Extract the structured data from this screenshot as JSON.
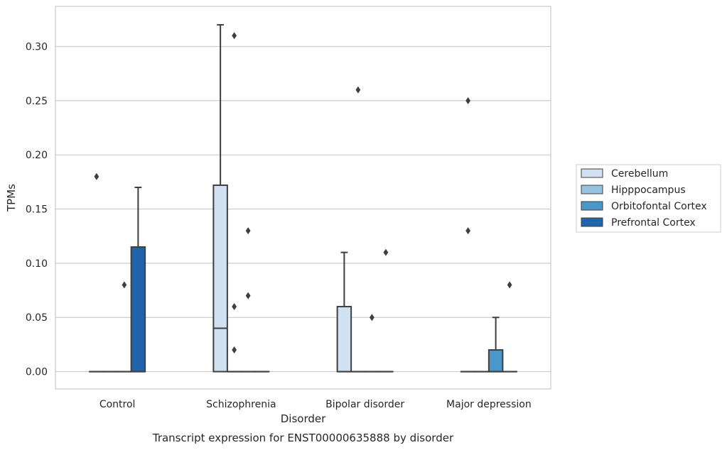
{
  "chart_data": {
    "type": "box",
    "caption": "Transcript expression for ENST00000635888 by disorder",
    "xlabel": "Disorder",
    "ylabel": "TPMs",
    "ylim": [
      -0.016,
      0.337
    ],
    "yticks": [
      0.0,
      0.05,
      0.1,
      0.15,
      0.2,
      0.25,
      0.3
    ],
    "ytick_labels": [
      "0.00",
      "0.05",
      "0.10",
      "0.15",
      "0.20",
      "0.25",
      "0.30"
    ],
    "grid": true,
    "legend_position": "right",
    "categories": [
      "Control",
      "Schizophrenia",
      "Bipolar disorder",
      "Major depression"
    ],
    "series": [
      {
        "name": "Cerebellum",
        "color": "#d0e1f2",
        "boxes": [
          {
            "q1": 0,
            "median": 0,
            "q3": 0,
            "whislo": 0,
            "whishi": 0,
            "fliers": [
              0.18
            ]
          },
          {
            "q1": 0,
            "median": 0.04,
            "q3": 0.172,
            "whislo": 0,
            "whishi": 0.32,
            "fliers": []
          },
          {
            "q1": 0,
            "median": 0,
            "q3": 0.06,
            "whislo": 0,
            "whishi": 0.11,
            "fliers": []
          },
          {
            "q1": 0,
            "median": 0,
            "q3": 0,
            "whislo": 0,
            "whishi": 0,
            "fliers": [
              0.25,
              0.13
            ]
          }
        ]
      },
      {
        "name": "Hipppocampus",
        "color": "#94c4df",
        "boxes": [
          {
            "q1": 0,
            "median": 0,
            "q3": 0,
            "whislo": 0,
            "whishi": 0,
            "fliers": []
          },
          {
            "q1": 0,
            "median": 0,
            "q3": 0,
            "whislo": 0,
            "whishi": 0,
            "fliers": [
              0.31,
              0.06,
              0.02
            ]
          },
          {
            "q1": 0,
            "median": 0,
            "q3": 0,
            "whislo": 0,
            "whishi": 0,
            "fliers": [
              0.26
            ]
          },
          {
            "q1": 0,
            "median": 0,
            "q3": 0,
            "whislo": 0,
            "whishi": 0,
            "fliers": []
          }
        ]
      },
      {
        "name": "Orbitofontal Cortex",
        "color": "#4a98c9",
        "boxes": [
          {
            "q1": 0,
            "median": 0,
            "q3": 0,
            "whislo": 0,
            "whishi": 0,
            "fliers": [
              0.08
            ]
          },
          {
            "q1": 0,
            "median": 0,
            "q3": 0,
            "whislo": 0,
            "whishi": 0,
            "fliers": [
              0.13,
              0.07
            ]
          },
          {
            "q1": 0,
            "median": 0,
            "q3": 0,
            "whislo": 0,
            "whishi": 0,
            "fliers": [
              0.05
            ]
          },
          {
            "q1": 0,
            "median": 0,
            "q3": 0.02,
            "whislo": 0,
            "whishi": 0.05,
            "fliers": []
          }
        ]
      },
      {
        "name": "Prefrontal Cortex",
        "color": "#2164ab",
        "boxes": [
          {
            "q1": 0,
            "median": 0,
            "q3": 0.115,
            "whislo": 0,
            "whishi": 0.17,
            "fliers": []
          },
          {
            "q1": 0,
            "median": 0,
            "q3": 0,
            "whislo": 0,
            "whishi": 0,
            "fliers": []
          },
          {
            "q1": 0,
            "median": 0,
            "q3": 0,
            "whislo": 0,
            "whishi": 0,
            "fliers": [
              0.11
            ]
          },
          {
            "q1": 0,
            "median": 0,
            "q3": 0,
            "whislo": 0,
            "whishi": 0,
            "fliers": [
              0.08
            ]
          }
        ]
      }
    ]
  }
}
